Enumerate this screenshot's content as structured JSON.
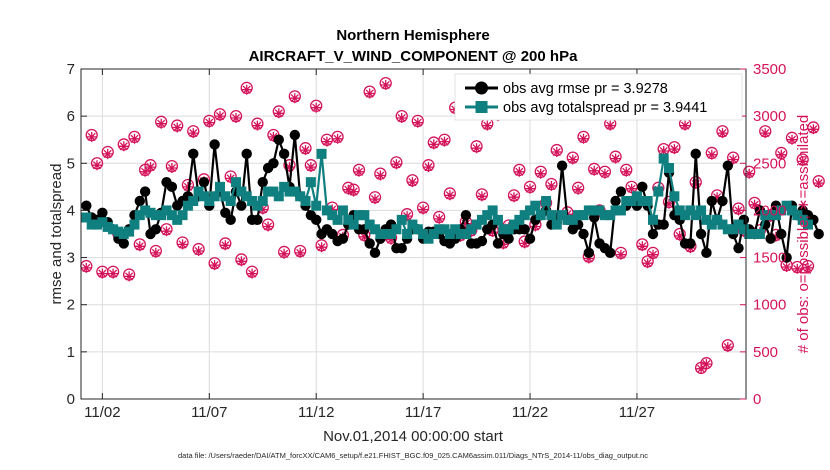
{
  "colors": {
    "rmse": "#000000",
    "spread": "#0f7f7f",
    "obs": "#d4145a",
    "grid": "#dcdcdc",
    "axis": "#262626"
  },
  "chart_data": {
    "type": "line",
    "title_line1": "Northern Hemisphere",
    "title_line2": "AIRCRAFT_V_WIND_COMPONENT @ 200 hPa",
    "xlabel": "Nov.01,2014 00:00:00 start",
    "ylabel_left": "rmse and totalspread",
    "ylabel_right": "# of obs: o=possible; ∗=assimilated",
    "footnote": "data file: /Users/raeder/DAI/ATM_forcXX/CAM6_setup/f.e21.FHIST_BGC.f09_025.CAM6assim.011/Diags_NTrS_2014-11/obs_diag_output.nc",
    "x_tick_labels": [
      "11/02",
      "11/07",
      "11/12",
      "11/17",
      "11/22",
      "11/27"
    ],
    "x_tick_days": [
      2,
      7,
      12,
      17,
      22,
      27
    ],
    "xlim": [
      1.0,
      32.1
    ],
    "ylim_left": [
      0,
      7
    ],
    "left_ticks": [
      "0",
      "1",
      "2",
      "3",
      "4",
      "5",
      "6",
      "7"
    ],
    "ylim_right": [
      0,
      3500
    ],
    "right_ticks": [
      "0",
      "500",
      "1000",
      "1500",
      "2000",
      "2500",
      "3000",
      "3500"
    ],
    "x_start_day": 1.25,
    "x_step_day": 0.25,
    "legend": [
      {
        "key": "rmse",
        "label": "obs avg rmse pr = 3.9278"
      },
      {
        "key": "spread",
        "label": "obs avg totalspread pr = 3.9441"
      }
    ],
    "series": [
      {
        "name": "rmse",
        "values": [
          4.1,
          3.85,
          3.8,
          3.95,
          3.75,
          3.6,
          3.4,
          3.3,
          3.6,
          3.9,
          4.2,
          4.4,
          3.5,
          3.6,
          3.95,
          4.6,
          4.5,
          4.1,
          4.2,
          4.3,
          5.2,
          4.3,
          4.6,
          4.1,
          5.4,
          4.4,
          3.95,
          3.8,
          4.4,
          4.1,
          5.2,
          3.8,
          3.8,
          4.6,
          4.9,
          5.0,
          5.5,
          5.2,
          4.5,
          5.6,
          4.3,
          4.1,
          3.9,
          3.8,
          3.5,
          3.6,
          3.5,
          3.35,
          3.4,
          3.7,
          3.9,
          3.6,
          3.6,
          3.3,
          3.1,
          3.4,
          3.6,
          3.7,
          3.2,
          3.2,
          3.4,
          3.6,
          3.6,
          3.4,
          3.55,
          3.55,
          3.5,
          3.35,
          3.3,
          3.4,
          3.6,
          3.9,
          3.3,
          3.3,
          3.35,
          3.6,
          3.7,
          3.3,
          3.5,
          3.4,
          3.6,
          3.6,
          3.6,
          3.4,
          3.8,
          3.9,
          4.0,
          3.7,
          3.75,
          4.95,
          3.8,
          3.6,
          3.7,
          3.5,
          3.1,
          3.85,
          3.3,
          3.2,
          3.1,
          4.2,
          4.4,
          4.1,
          4.2,
          4.1,
          4.5,
          4.1,
          3.5,
          3.7,
          3.7,
          4.8,
          3.9,
          3.8,
          3.3,
          3.3,
          5.2,
          3.5,
          3.1,
          4.2,
          3.8,
          4.2,
          4.95,
          3.5,
          3.2,
          3.8,
          3.6,
          3.5,
          4.0,
          3.7,
          3.4,
          4.1,
          3.5,
          3.0,
          4.1,
          3.9,
          4.0,
          3.9,
          3.8,
          3.5
        ]
      },
      {
        "name": "totalspread",
        "values": [
          3.85,
          3.7,
          3.7,
          3.75,
          3.65,
          3.6,
          3.55,
          3.5,
          3.55,
          3.7,
          3.9,
          4.0,
          3.95,
          3.9,
          3.9,
          4.0,
          3.9,
          3.8,
          3.9,
          4.1,
          4.2,
          4.4,
          4.3,
          4.2,
          4.3,
          4.5,
          4.3,
          4.2,
          4.6,
          4.4,
          4.3,
          4.2,
          4.1,
          4.2,
          4.4,
          4.4,
          4.3,
          4.5,
          4.4,
          4.4,
          4.3,
          4.2,
          4.6,
          4.1,
          5.2,
          4.0,
          3.9,
          3.8,
          4.0,
          3.8,
          3.7,
          3.9,
          3.9,
          3.7,
          3.6,
          3.5,
          3.5,
          3.5,
          3.6,
          3.8,
          3.5,
          3.7,
          3.6,
          3.5,
          3.4,
          3.5,
          3.6,
          3.6,
          3.5,
          3.6,
          3.5,
          3.5,
          3.6,
          3.7,
          3.8,
          3.9,
          4.0,
          3.8,
          3.6,
          3.6,
          3.7,
          3.8,
          3.9,
          4.0,
          4.1,
          3.9,
          4.2,
          3.9,
          3.7,
          3.9,
          3.8,
          3.8,
          3.9,
          3.9,
          4.0,
          4.0,
          4.0,
          3.9,
          3.9,
          4.0,
          4.0,
          4.2,
          4.2,
          4.3,
          4.2,
          4.2,
          3.8,
          4.4,
          5.1,
          4.9,
          4.3,
          4.0,
          3.9,
          4.0,
          3.9,
          4.0,
          3.8,
          3.7,
          3.8,
          3.7,
          3.6,
          3.6,
          3.7,
          3.6,
          3.5,
          3.5,
          3.5,
          3.9,
          3.9,
          3.9,
          4.0,
          4.1,
          4.0,
          3.9,
          3.8,
          3.7
        ]
      },
      {
        "name": "obs_possible",
        "values": [
          1410,
          2800,
          2500,
          1350,
          2620,
          1350,
          1750,
          2700,
          1320,
          2780,
          1640,
          2430,
          2480,
          1570,
          2940,
          1800,
          2470,
          2900,
          1660,
          2270,
          2840,
          1590,
          2330,
          2950,
          1440,
          3020,
          1650,
          2360,
          3000,
          1480,
          3300,
          1350,
          2920,
          2030,
          1850,
          2800,
          3050,
          1560,
          2480,
          3210,
          1570,
          2660,
          2480,
          3110,
          1630,
          2750,
          2030,
          2780,
          1740,
          2240,
          2220,
          2430,
          1740,
          3260,
          2140,
          2390,
          3350,
          1710,
          2510,
          3000,
          1960,
          2320,
          2950,
          2030,
          2480,
          2720,
          1930,
          2750,
          2180,
          3090,
          1740,
          1880,
          1790,
          2680,
          2170,
          2920,
          1790,
          3020,
          1660,
          1840,
          2160,
          2430,
          1670,
          2250,
          1850,
          2410,
          2080,
          2280,
          2640,
          3030,
          1980,
          2560,
          2240,
          2780,
          1510,
          2440,
          2000,
          2410,
          2920,
          2570,
          1550,
          2430,
          2250,
          3130,
          1640,
          1460,
          1550,
          2240,
          2650,
          2090,
          2670,
          1750,
          2920,
          1620,
          2300,
          330,
          380,
          2610,
          2160,
          2840,
          570,
          2560,
          2020,
          1790,
          2410,
          2080,
          1790,
          2840,
          1950,
          1740,
          2610,
          1420,
          2770,
          1400,
          2540,
          1410,
          2880,
          2310
        ]
      },
      {
        "name": "obs_assimilated",
        "values": [
          1390,
          2780,
          2480,
          1330,
          2600,
          1330,
          1730,
          2680,
          1300,
          2760,
          1620,
          2410,
          2460,
          1550,
          2920,
          1780,
          2450,
          2880,
          1640,
          2250,
          2820,
          1570,
          2310,
          2930,
          1420,
          3000,
          1630,
          2340,
          2980,
          1460,
          3280,
          1330,
          2900,
          2010,
          1830,
          2780,
          3030,
          1540,
          2460,
          3190,
          1550,
          2640,
          2460,
          3090,
          1610,
          2730,
          2010,
          2760,
          1720,
          2220,
          2200,
          2410,
          1720,
          3240,
          2120,
          2370,
          3330,
          1690,
          2490,
          2980,
          1940,
          2300,
          2930,
          2010,
          2460,
          2700,
          1910,
          2730,
          2160,
          3070,
          1720,
          1860,
          1770,
          2660,
          2150,
          2900,
          1770,
          3000,
          1640,
          1820,
          2140,
          2410,
          1650,
          2230,
          1830,
          2390,
          2060,
          2260,
          2620,
          3010,
          1960,
          2540,
          2220,
          2760,
          1490,
          2420,
          1980,
          2390,
          2900,
          2550,
          1530,
          2410,
          2230,
          3110,
          1620,
          1440,
          1530,
          2220,
          2630,
          2070,
          2650,
          1730,
          2900,
          1600,
          2280,
          320,
          370,
          2590,
          2140,
          2820,
          550,
          2540,
          2000,
          1770,
          2390,
          2060,
          1770,
          2820,
          1930,
          1720,
          2590,
          1400,
          2750,
          1380,
          2520,
          1390,
          2860,
          2290
        ]
      }
    ]
  }
}
